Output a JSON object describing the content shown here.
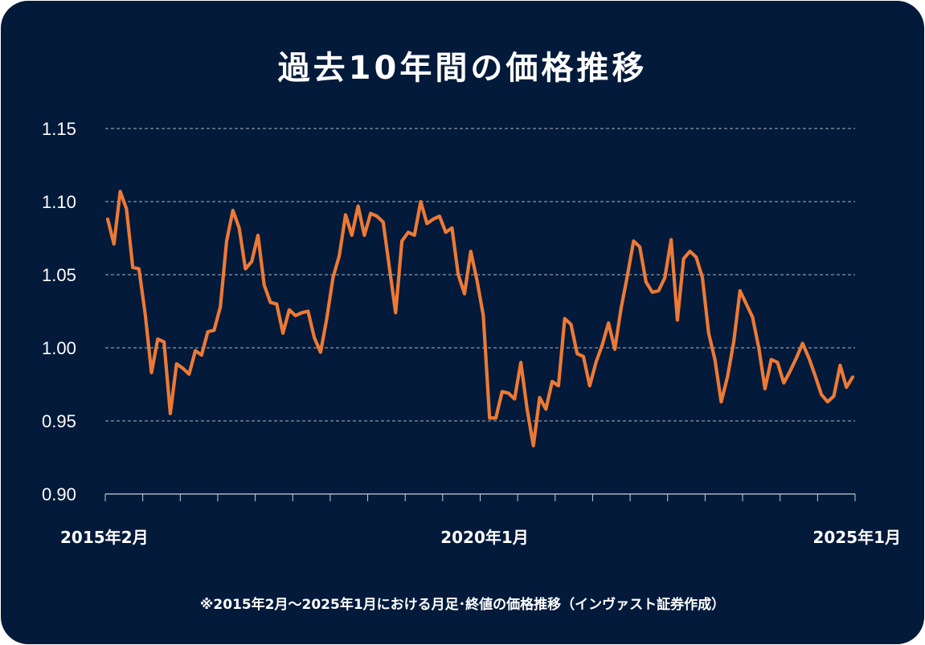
{
  "colors": {
    "background": "#031a3a",
    "line": "#ec7a36",
    "grid": "#c8cfdc",
    "text": "#ffffff"
  },
  "title": "過去10年間の価格推移",
  "footnote": "※2015年2月～2025年1月における月足･終値の価格推移（インヴァスト証券作成）",
  "chart_data": {
    "type": "line",
    "title": "過去10年間の価格推移",
    "xlabel": "",
    "ylabel": "",
    "ylim": [
      0.9,
      1.15
    ],
    "y_ticks": [
      "0.90",
      "0.95",
      "1.00",
      "1.05",
      "1.10",
      "1.15"
    ],
    "x_tick_labels": [
      "2015年2月",
      "2020年1月",
      "2025年1月"
    ],
    "grid": "horizontal dashed",
    "legend": "none",
    "series": [
      {
        "values": [
          1.088,
          1.071,
          1.107,
          1.095,
          1.055,
          1.054,
          1.023,
          0.983,
          1.006,
          1.004,
          0.955,
          0.989,
          0.986,
          0.982,
          0.998,
          0.995,
          1.011,
          1.012,
          1.028,
          1.073,
          1.094,
          1.082,
          1.054,
          1.059,
          1.077,
          1.043,
          1.031,
          1.03,
          1.01,
          1.026,
          1.022,
          1.024,
          1.025,
          1.007,
          0.997,
          1.02,
          1.048,
          1.063,
          1.091,
          1.077,
          1.097,
          1.077,
          1.092,
          1.09,
          1.086,
          1.055,
          1.024,
          1.073,
          1.079,
          1.077,
          1.1,
          1.085,
          1.088,
          1.09,
          1.079,
          1.082,
          1.05,
          1.037,
          1.066,
          1.046,
          1.022,
          0.952,
          0.952,
          0.97,
          0.969,
          0.965,
          0.99,
          0.958,
          0.933,
          0.966,
          0.958,
          0.977,
          0.974,
          1.02,
          1.016,
          0.996,
          0.994,
          0.974,
          0.99,
          1.002,
          1.017,
          0.999,
          1.027,
          1.049,
          1.073,
          1.069,
          1.045,
          1.038,
          1.039,
          1.048,
          1.074,
          1.019,
          1.061,
          1.066,
          1.062,
          1.048,
          1.01,
          0.992,
          0.963,
          0.98,
          1.004,
          1.039,
          1.03,
          1.021,
          1.0,
          0.972,
          0.992,
          0.99,
          0.976,
          0.984,
          0.993,
          1.003,
          0.993,
          0.981,
          0.968,
          0.963,
          0.967,
          0.988,
          0.973,
          0.98
        ]
      }
    ]
  }
}
